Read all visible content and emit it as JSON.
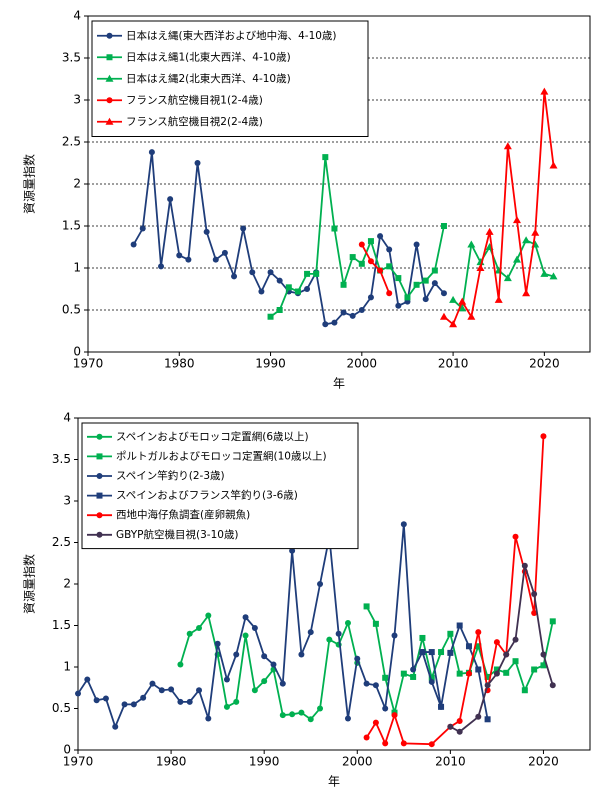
{
  "chart_data": [
    {
      "type": "line",
      "xlabel": "年",
      "ylabel": "資源量指数",
      "xlim": [
        1970,
        2025
      ],
      "ylim": [
        0,
        4
      ],
      "xticks": [
        1970,
        1980,
        1990,
        2000,
        2010,
        2020
      ],
      "yticks": [
        0,
        0.5,
        1,
        1.5,
        2,
        2.5,
        3,
        3.5,
        4
      ],
      "grid": true,
      "legend": "upper left",
      "series": [
        {
          "name": "日本はえ縄(東大西洋および地中海、4-10歳)",
          "color": "#1f3d7a",
          "marker": "circle",
          "x": [
            1975,
            1976,
            1977,
            1978,
            1979,
            1980,
            1981,
            1982,
            1983,
            1984,
            1985,
            1986,
            1987,
            1988,
            1989,
            1990,
            1991,
            1992,
            1993,
            1994,
            1995,
            1996,
            1997,
            1998,
            1999,
            2000,
            2001,
            2002,
            2003,
            2004,
            2005,
            2006,
            2007,
            2008,
            2009
          ],
          "values": [
            1.28,
            1.47,
            2.38,
            1.02,
            1.82,
            1.15,
            1.1,
            2.25,
            1.43,
            1.1,
            1.18,
            0.9,
            1.47,
            0.95,
            0.72,
            0.95,
            0.85,
            0.72,
            0.7,
            0.75,
            0.95,
            0.33,
            0.35,
            0.47,
            0.43,
            0.5,
            0.65,
            1.38,
            1.22,
            0.55,
            0.6,
            1.28,
            0.63,
            0.82,
            0.7
          ]
        },
        {
          "name": "日本はえ縄1(北東大西洋、4-10歳)",
          "color": "#00b050",
          "marker": "square",
          "x": [
            1990,
            1991,
            1992,
            1993,
            1994,
            1995,
            1996,
            1997,
            1998,
            1999,
            2000,
            2001,
            2002,
            2003,
            2004,
            2005,
            2006,
            2007,
            2008,
            2009
          ],
          "values": [
            0.42,
            0.5,
            0.77,
            0.72,
            0.93,
            0.93,
            2.32,
            1.47,
            0.8,
            1.13,
            1.05,
            1.32,
            0.97,
            1.02,
            0.88,
            0.65,
            0.8,
            0.85,
            0.97,
            1.5
          ]
        },
        {
          "name": "日本はえ縄2(北東大西洋、4-10歳)",
          "color": "#00b050",
          "marker": "triangle",
          "x": [
            2010,
            2011,
            2012,
            2013,
            2014,
            2015,
            2016,
            2017,
            2018,
            2019,
            2020,
            2021
          ],
          "values": [
            0.62,
            0.52,
            1.28,
            1.07,
            1.25,
            0.97,
            0.88,
            1.1,
            1.33,
            1.28,
            0.93,
            0.9
          ]
        },
        {
          "name": "フランス航空機目視1(2-4歳)",
          "color": "#ff0000",
          "marker": "circle",
          "x": [
            2000,
            2001,
            2002,
            2003
          ],
          "values": [
            1.28,
            1.08,
            0.97,
            0.7
          ]
        },
        {
          "name": "フランス航空機目視2(2-4歳)",
          "color": "#ff0000",
          "marker": "triangle",
          "x": [
            2009,
            2010,
            2011,
            2012,
            2013,
            2014,
            2015,
            2016,
            2017,
            2018,
            2019,
            2020,
            2021
          ],
          "values": [
            0.42,
            0.33,
            0.6,
            0.42,
            1.0,
            1.43,
            0.62,
            2.45,
            1.57,
            0.7,
            1.42,
            3.1,
            2.22
          ]
        }
      ]
    },
    {
      "type": "line",
      "xlabel": "年",
      "ylabel": "資源量指数",
      "xlim": [
        1970,
        2025
      ],
      "ylim": [
        0,
        4
      ],
      "xticks": [
        1970,
        1980,
        1990,
        2000,
        2010,
        2020
      ],
      "yticks": [
        0,
        0.5,
        1,
        1.5,
        2,
        2.5,
        3,
        3.5,
        4
      ],
      "grid": false,
      "legend": "upper left",
      "series": [
        {
          "name": "スペインおよびモロッコ定置網(6歳以上)",
          "color": "#00b050",
          "marker": "circle",
          "x": [
            1981,
            1982,
            1983,
            1984,
            1985,
            1986,
            1987,
            1988,
            1989,
            1990,
            1991,
            1992,
            1993,
            1994,
            1995,
            1996,
            1997,
            1998,
            1999,
            2000
          ],
          "values": [
            1.03,
            1.4,
            1.47,
            1.62,
            1.15,
            0.52,
            0.58,
            1.38,
            0.72,
            0.83,
            0.97,
            0.42,
            0.43,
            0.45,
            0.37,
            0.5,
            1.33,
            1.27,
            1.53,
            1.05
          ]
        },
        {
          "name": "ポルトガルおよびモロッコ定置網(10歳以上)",
          "color": "#00b050",
          "marker": "square",
          "x": [
            2001,
            2002,
            2003,
            2004,
            2005,
            2006,
            2007,
            2008,
            2009,
            2010,
            2011,
            2012,
            2013,
            2014,
            2015,
            2016,
            2017,
            2018,
            2019,
            2020,
            2021
          ],
          "values": [
            1.73,
            1.52,
            0.87,
            0.45,
            0.92,
            0.88,
            1.35,
            0.87,
            1.18,
            1.4,
            0.92,
            0.93,
            1.25,
            0.88,
            0.97,
            0.93,
            1.07,
            0.72,
            0.97,
            1.02,
            1.55
          ]
        },
        {
          "name": "スペイン竿釣り(2-3歳)",
          "color": "#1f3d7a",
          "marker": "circle",
          "x": [
            1970,
            1971,
            1972,
            1973,
            1974,
            1975,
            1976,
            1977,
            1978,
            1979,
            1980,
            1981,
            1982,
            1983,
            1984,
            1985,
            1986,
            1987,
            1988,
            1989,
            1990,
            1991,
            1992,
            1993,
            1994,
            1995,
            1996,
            1997,
            1998,
            1999,
            2000,
            2001,
            2002,
            2003,
            2004,
            2005,
            2006,
            2007,
            2008,
            2009
          ],
          "values": [
            0.68,
            0.85,
            0.6,
            0.62,
            0.28,
            0.55,
            0.55,
            0.63,
            0.8,
            0.72,
            0.73,
            0.58,
            0.58,
            0.72,
            0.38,
            1.28,
            0.85,
            1.15,
            1.6,
            1.47,
            1.13,
            1.03,
            0.8,
            2.4,
            1.15,
            1.42,
            2.0,
            2.57,
            1.4,
            0.38,
            1.1,
            0.8,
            0.78,
            0.5,
            1.38,
            2.72,
            0.97,
            1.18,
            0.82,
            0.52
          ]
        },
        {
          "name": "スペインおよびフランス竿釣り(3-6歳)",
          "color": "#1f3d7a",
          "marker": "square",
          "x": [
            2007,
            2008,
            2009,
            2010,
            2011,
            2012,
            2013,
            2014
          ],
          "values": [
            1.18,
            1.18,
            0.52,
            1.17,
            1.5,
            1.25,
            0.97,
            0.37
          ]
        },
        {
          "name": "西地中海仔魚調査(産卵親魚)",
          "color": "#ff0000",
          "marker": "circle",
          "x": [
            2001,
            2002,
            2003,
            2004,
            2005,
            2008,
            2010,
            2011,
            2012,
            2013,
            2014,
            2015,
            2016,
            2017,
            2018,
            2019,
            2020
          ],
          "values": [
            0.15,
            0.33,
            0.08,
            0.42,
            0.08,
            0.07,
            0.28,
            0.35,
            0.92,
            1.42,
            0.72,
            1.3,
            1.15,
            2.57,
            2.15,
            1.65,
            3.78
          ]
        },
        {
          "name": "GBYP航空機目視(3-10歳)",
          "color": "#403151",
          "marker": "circle",
          "x": [
            2010,
            2011,
            2013,
            2014,
            2015,
            2016,
            2017,
            2018,
            2019,
            2020,
            2021
          ],
          "values": [
            0.28,
            0.22,
            0.4,
            0.78,
            0.92,
            1.15,
            1.33,
            2.22,
            1.88,
            1.15,
            0.78
          ]
        }
      ]
    }
  ]
}
